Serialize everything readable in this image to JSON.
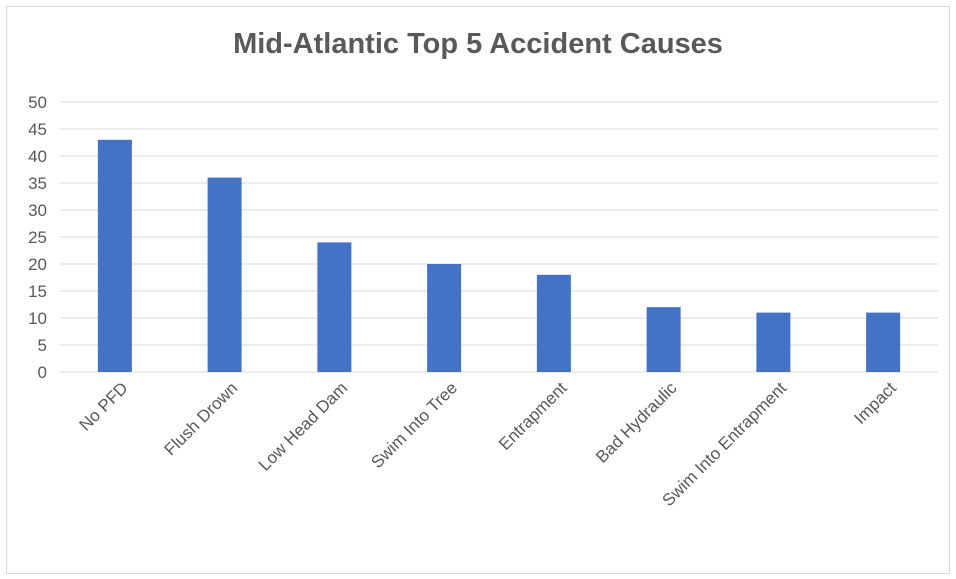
{
  "chart_data": {
    "type": "bar",
    "title": "Mid-Atlantic Top 5 Accident Causes",
    "categories": [
      "No PFD",
      "Flush Drown",
      "Low Head Dam",
      "Swim Into Tree",
      "Entrapment",
      "Bad Hydraulic",
      "Swim Into Entrapment",
      "Impact"
    ],
    "values": [
      43,
      36,
      24,
      20,
      18,
      12,
      11,
      11
    ],
    "ylim": [
      0,
      50
    ],
    "yticks": [
      0,
      5,
      10,
      15,
      20,
      25,
      30,
      35,
      40,
      45,
      50
    ],
    "grid": true,
    "bar_color": "#4472c4",
    "grid_color": "#d9d9d9"
  }
}
